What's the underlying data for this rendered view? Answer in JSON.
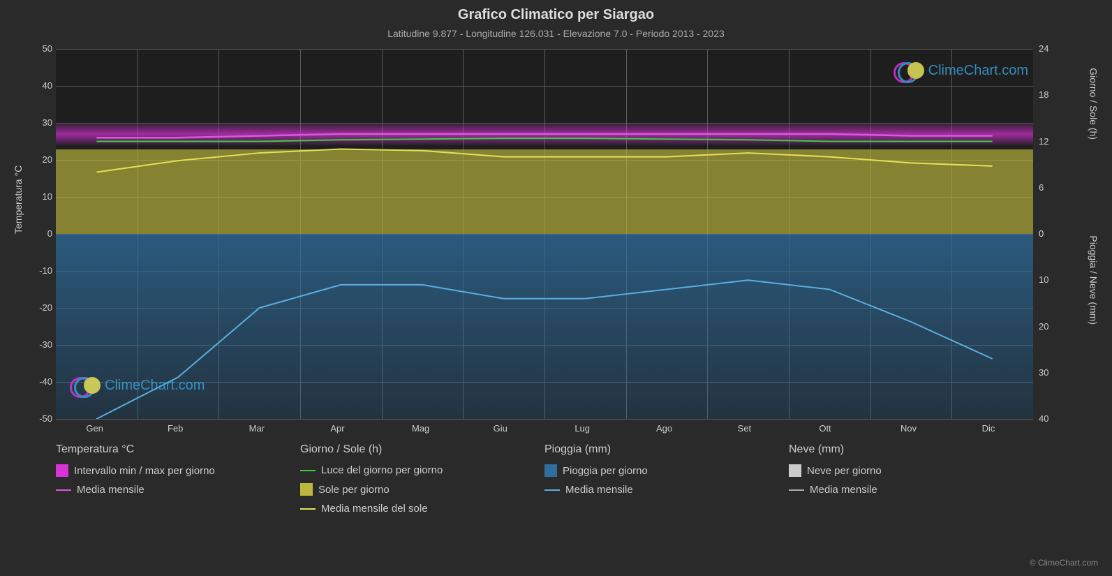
{
  "title": "Grafico Climatico per Siargao",
  "subtitle": "Latitudine 9.877 - Longitudine 126.031 - Elevazione 7.0 - Periodo 2013 - 2023",
  "axis_left_label": "Temperatura °C",
  "axis_right_top_label": "Giorno / Sole (h)",
  "axis_right_bottom_label": "Pioggia / Neve (mm)",
  "plot": {
    "bg": "#1e1e1e",
    "grid_color": "#5a5a5a",
    "left_axis": {
      "min": -50,
      "max": 50,
      "ticks": [
        -50,
        -40,
        -30,
        -20,
        -10,
        0,
        10,
        20,
        30,
        40,
        50
      ]
    },
    "right_axis_top": {
      "min": 0,
      "max": 24,
      "ticks": [
        0,
        6,
        12,
        18,
        24
      ]
    },
    "right_axis_bottom": {
      "min": 0,
      "max": 40,
      "ticks": [
        0,
        10,
        20,
        30,
        40
      ]
    },
    "x_ticks": [
      "Gen",
      "Feb",
      "Mar",
      "Apr",
      "Mag",
      "Giu",
      "Lug",
      "Ago",
      "Set",
      "Ott",
      "Nov",
      "Dic"
    ],
    "temp_range": {
      "top_c": 30,
      "bottom_c": 24,
      "color": "#d832d8"
    },
    "sun_bars": {
      "top_h": 11,
      "bottom_h": 0,
      "color": "#bdb83c"
    },
    "rain_bars": {
      "top_mm": 0,
      "bottom_mm": 40,
      "color": "#2f6e9e"
    },
    "series": {
      "temp_mean": {
        "color": "#d85ad8",
        "values_c": [
          26,
          26,
          26.5,
          27,
          27,
          27,
          27,
          27,
          27,
          27,
          26.5,
          26.5
        ]
      },
      "daylight": {
        "color": "#3bd03b",
        "values_h": [
          12,
          12,
          12,
          12.2,
          12.3,
          12.4,
          12.4,
          12.3,
          12.2,
          12,
          12,
          12
        ]
      },
      "sun_mean": {
        "color": "#e5e05a",
        "values_h": [
          8,
          9.5,
          10.5,
          11,
          10.8,
          10,
          10,
          10,
          10.5,
          10,
          9.2,
          8.8
        ]
      },
      "rain_mean": {
        "color": "#5aaee0",
        "values_mm": [
          40,
          31,
          16,
          11,
          11,
          14,
          14,
          12,
          10,
          12,
          19,
          27
        ]
      }
    }
  },
  "legend": {
    "temp": {
      "header": "Temperatura °C",
      "range": "Intervallo min / max per giorno",
      "mean": "Media mensile",
      "range_color": "#d832d8",
      "mean_color": "#d85ad8"
    },
    "sun": {
      "header": "Giorno / Sole (h)",
      "daylight": "Luce del giorno per giorno",
      "daylight_color": "#3bd03b",
      "sun_bars": "Sole per giorno",
      "sun_bars_color": "#bdb83c",
      "sun_mean": "Media mensile del sole",
      "sun_mean_color": "#e5e05a"
    },
    "rain": {
      "header": "Pioggia (mm)",
      "bars": "Pioggia per giorno",
      "bars_color": "#2f6e9e",
      "mean": "Media mensile",
      "mean_color": "#5aaee0"
    },
    "snow": {
      "header": "Neve (mm)",
      "bars": "Neve per giorno",
      "bars_color": "#cccccc",
      "mean": "Media mensile",
      "mean_color": "#aaaaaa"
    }
  },
  "watermark_text": "ClimeChart.com",
  "copyright": "© ClimeChart.com"
}
